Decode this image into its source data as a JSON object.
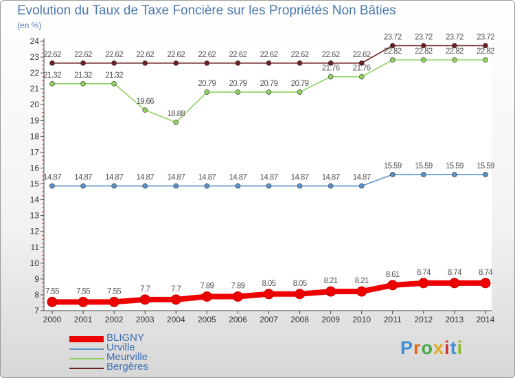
{
  "title": "Evolution du Taux de Taxe Foncière sur les Propriétés Non Bâties",
  "subtitle": "(en %)",
  "logo_text": "Proxiti",
  "chart_data": {
    "type": "line",
    "title": "Evolution du Taux de Taxe Foncière sur les Propriétés Non Bâties",
    "ylabel": "(en %)",
    "xlabel": "",
    "ylim": [
      7,
      24
    ],
    "yticks": [
      "7",
      "8",
      "9",
      "10",
      "11",
      "12",
      "13",
      "14",
      "15",
      "16",
      "17",
      "18",
      "19",
      "20",
      "21",
      "22",
      "23",
      "24"
    ],
    "categories": [
      "2000",
      "2001",
      "2002",
      "2003",
      "2004",
      "2005",
      "2006",
      "2007",
      "2008",
      "2009",
      "2010",
      "2011",
      "2012",
      "2013",
      "2014"
    ],
    "grid": false,
    "legend_position": "bottom-left",
    "series": [
      {
        "name": "Bergères",
        "color": "#6b2222",
        "values": [
          22.62,
          22.62,
          22.62,
          22.62,
          22.62,
          22.62,
          22.62,
          22.62,
          22.62,
          22.62,
          22.62,
          23.72,
          23.72,
          23.72,
          23.72
        ],
        "labels": [
          "22.62",
          "22.62",
          "22.62",
          "22.62",
          "22.62",
          "22.62",
          "22.62",
          "22.62",
          "22.62",
          "22.62",
          "22.62",
          "23.72",
          "23.72",
          "23.72",
          "23.72"
        ]
      },
      {
        "name": "Meurville",
        "color": "#90d060",
        "values": [
          21.32,
          21.32,
          21.32,
          19.66,
          18.88,
          20.79,
          20.79,
          20.79,
          20.79,
          21.76,
          21.76,
          22.82,
          22.82,
          22.82,
          22.82
        ],
        "labels": [
          "21.32",
          "21.32",
          "21.32",
          "19.66",
          "18.88",
          "20.79",
          "20.79",
          "20.79",
          "20.79",
          "21.76",
          "21.76",
          "22.82",
          "22.82",
          "22.82",
          "22.82"
        ]
      },
      {
        "name": "Urville",
        "color": "#5b92c6",
        "values": [
          14.87,
          14.87,
          14.87,
          14.87,
          14.87,
          14.87,
          14.87,
          14.87,
          14.87,
          14.87,
          14.87,
          15.59,
          15.59,
          15.59,
          15.59
        ],
        "labels": [
          "14.87",
          "14.87",
          "14.87",
          "14.87",
          "14.87",
          "14.87",
          "14.87",
          "14.87",
          "14.87",
          "14.87",
          "14.87",
          "15.59",
          "15.59",
          "15.59",
          "15.59"
        ]
      },
      {
        "name": "BLIGNY",
        "color": "#ee0000",
        "values": [
          7.55,
          7.55,
          7.55,
          7.7,
          7.7,
          7.89,
          7.89,
          8.05,
          8.05,
          8.21,
          8.21,
          8.61,
          8.74,
          8.74,
          8.74
        ],
        "labels": [
          "7.55",
          "7.55",
          "7.55",
          "7.7",
          "7.7",
          "7.89",
          "7.89",
          "8.05",
          "8.05",
          "8.21",
          "8.21",
          "8.61",
          "8.74",
          "8.74",
          "8.74"
        ]
      }
    ],
    "legend": [
      "BLIGNY",
      "Urville",
      "Meurville",
      "Bergères"
    ]
  }
}
